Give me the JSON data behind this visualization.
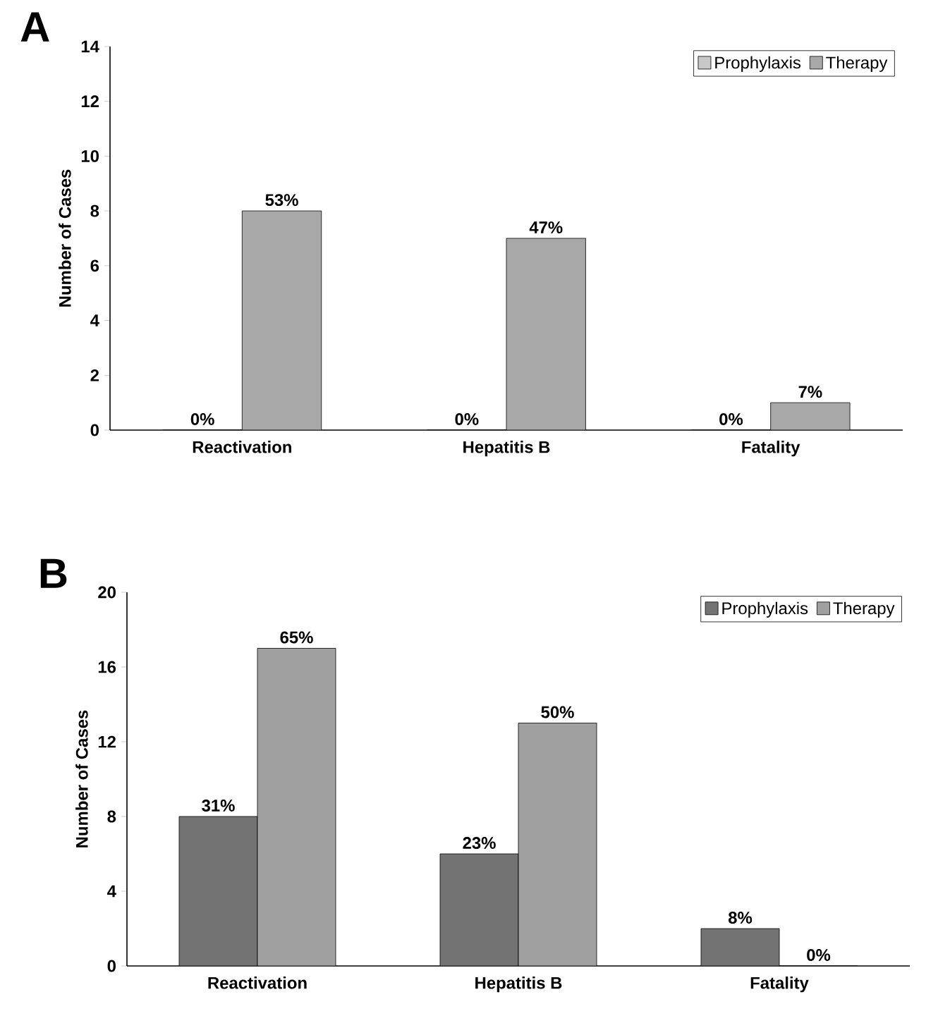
{
  "chart_data": [
    {
      "type": "bar",
      "title": "A",
      "ylabel": "Number of Cases",
      "categories": [
        "Reactivation",
        "Hepatitis B",
        "Fatality"
      ],
      "series": [
        {
          "name": "Prophylaxis",
          "color": "#c8c8c8",
          "values": [
            0,
            0,
            0
          ]
        },
        {
          "name": "Therapy",
          "color": "#a8a8a8",
          "values": [
            8,
            7,
            1
          ]
        }
      ],
      "annotations": [
        {
          "text": "0%",
          "x": "Reactivation",
          "y": 0
        },
        {
          "text": "53%",
          "x": "Reactivation",
          "y": 8
        },
        {
          "text": "0%",
          "x": "Hepatitis B",
          "y": 0
        },
        {
          "text": "47%",
          "x": "Hepatitis B",
          "y": 7
        },
        {
          "text": "0%",
          "x": "Fatality",
          "y": 0
        },
        {
          "text": "7%",
          "x": "Fatality",
          "y": 1
        }
      ],
      "ylim": [
        0,
        14
      ],
      "yticks": [
        0,
        2,
        4,
        6,
        8,
        10,
        12,
        14
      ],
      "legend": "top right"
    },
    {
      "type": "bar",
      "title": "B",
      "ylabel": "Number of Cases",
      "categories": [
        "Reactivation",
        "Hepatitis B",
        "Fatality"
      ],
      "series": [
        {
          "name": "Prophylaxis",
          "color": "#737373",
          "values": [
            8,
            6,
            2
          ]
        },
        {
          "name": "Therapy",
          "color": "#a0a0a0",
          "values": [
            17,
            13,
            0
          ]
        }
      ],
      "annotations": [
        {
          "text": "31%",
          "x": "Reactivation",
          "y": 8
        },
        {
          "text": "65%",
          "x": "Reactivation",
          "y": 17
        },
        {
          "text": "23%",
          "x": "Hepatitis B",
          "y": 6
        },
        {
          "text": "50%",
          "x": "Hepatitis B",
          "y": 13
        },
        {
          "text": "8%",
          "x": "Fatality",
          "y": 2
        },
        {
          "text": "0%",
          "x": "Fatality",
          "y": 0
        }
      ],
      "ylim": [
        0,
        20
      ],
      "yticks": [
        0,
        4,
        8,
        12,
        16,
        20
      ],
      "legend": "top right"
    }
  ]
}
